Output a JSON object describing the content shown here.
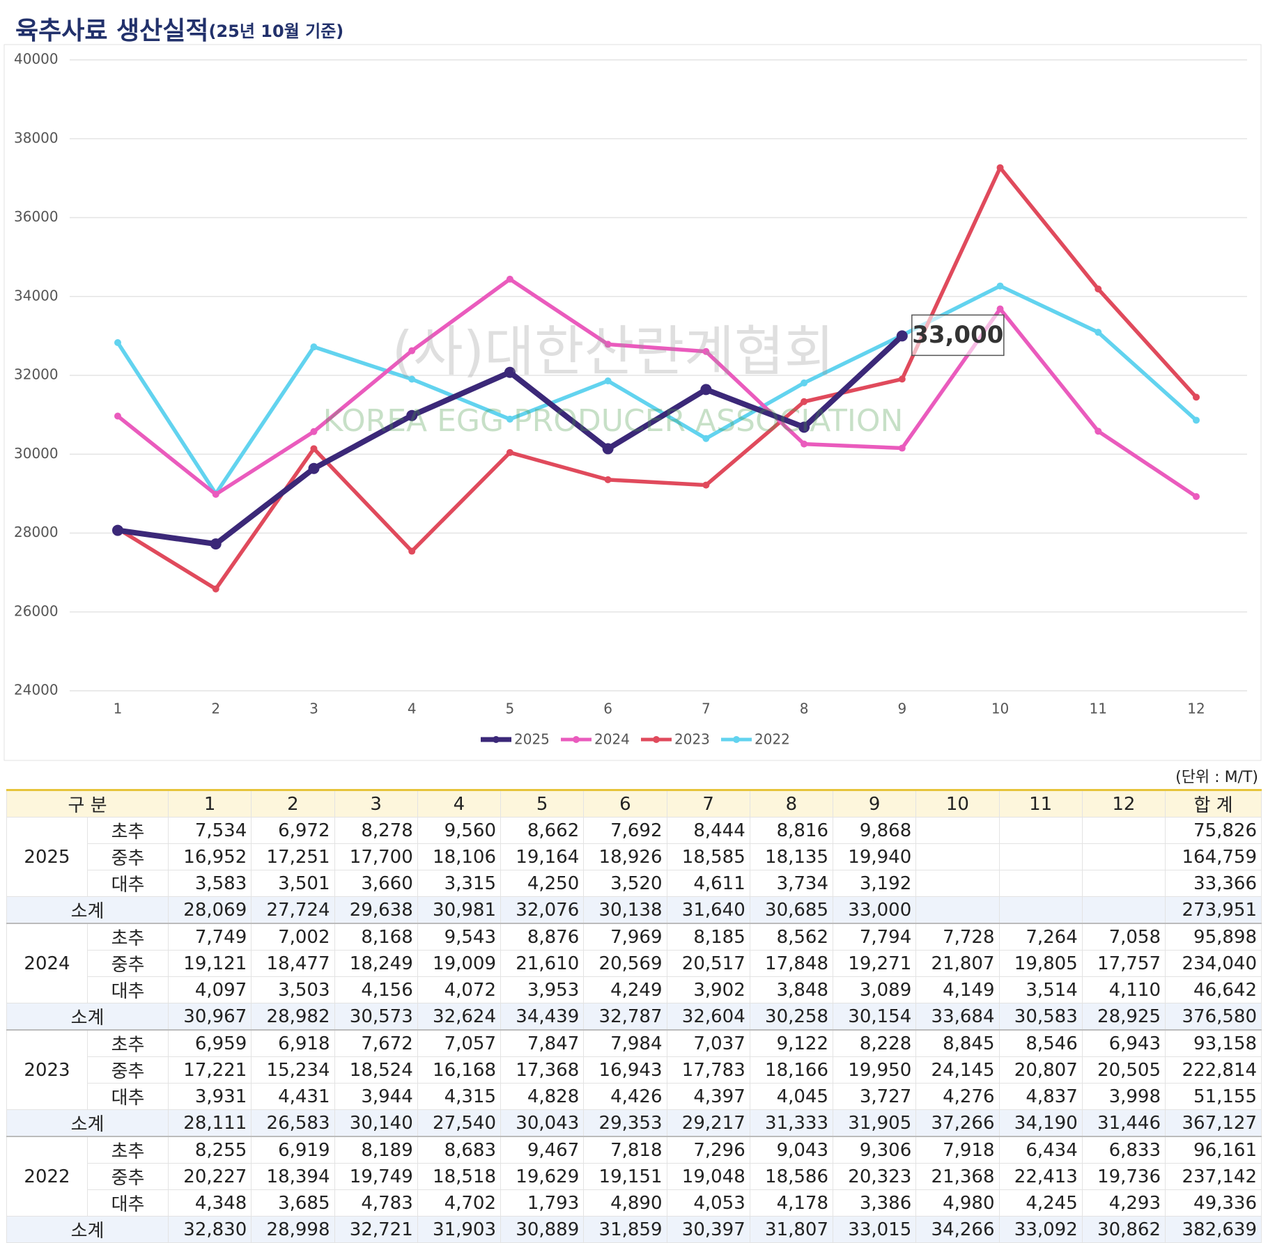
{
  "chart_data": {
    "type": "line",
    "title": "육추사료 생산실적",
    "subtitle": "(25년 10월 기준)",
    "categories": [
      "1",
      "2",
      "3",
      "4",
      "5",
      "6",
      "7",
      "8",
      "9",
      "10",
      "11",
      "12"
    ],
    "series": [
      {
        "name": "2025",
        "color": "#3b2878",
        "values": [
          28069,
          27724,
          29638,
          30981,
          32076,
          30138,
          31640,
          30685,
          33000,
          null,
          null,
          null
        ],
        "value_labels": [
          null,
          null,
          null,
          null,
          null,
          null,
          null,
          null,
          "33,000",
          null,
          null,
          null
        ]
      },
      {
        "name": "2024",
        "color": "#ea5bbd",
        "values": [
          30967,
          28982,
          30573,
          32624,
          34439,
          32787,
          32604,
          30258,
          30154,
          33684,
          30583,
          28925
        ]
      },
      {
        "name": "2023",
        "color": "#e04a5c",
        "values": [
          28111,
          26583,
          30140,
          27540,
          30043,
          29353,
          29217,
          31333,
          31905,
          37266,
          34190,
          31446
        ]
      },
      {
        "name": "2022",
        "color": "#62d3ef",
        "values": [
          32830,
          28998,
          32721,
          31903,
          30889,
          31859,
          30397,
          31807,
          33015,
          34266,
          33092,
          30862
        ]
      }
    ],
    "ylim": [
      24000,
      40000
    ],
    "yticks": [
      24000,
      26000,
      28000,
      30000,
      32000,
      34000,
      36000,
      38000,
      40000
    ],
    "grid": true,
    "legend": "bottom",
    "annotations": [
      "(사)대한산란계협회",
      "KOREA EGG PRODUCER ASSOCIATION"
    ]
  },
  "table": {
    "unit": "(단위 : M/T)",
    "header": [
      "구 분",
      "1",
      "2",
      "3",
      "4",
      "5",
      "6",
      "7",
      "8",
      "9",
      "10",
      "11",
      "12",
      "합 계"
    ],
    "groups": [
      {
        "year": "2025",
        "rows": [
          {
            "label": "초추",
            "cells": [
              "7,534",
              "6,972",
              "8,278",
              "9,560",
              "8,662",
              "7,692",
              "8,444",
              "8,816",
              "9,868",
              null,
              null,
              null,
              "75,826"
            ]
          },
          {
            "label": "중추",
            "cells": [
              "16,952",
              "17,251",
              "17,700",
              "18,106",
              "19,164",
              "18,926",
              "18,585",
              "18,135",
              "19,940",
              null,
              null,
              null,
              "164,759"
            ]
          },
          {
            "label": "대추",
            "cells": [
              "3,583",
              "3,501",
              "3,660",
              "3,315",
              "4,250",
              "3,520",
              "4,611",
              "3,734",
              "3,192",
              null,
              null,
              null,
              "33,366"
            ]
          }
        ],
        "subtotal": {
          "label": "소계",
          "cells": [
            "28,069",
            "27,724",
            "29,638",
            "30,981",
            "32,076",
            "30,138",
            "31,640",
            "30,685",
            "33,000",
            null,
            null,
            null,
            "273,951"
          ]
        }
      },
      {
        "year": "2024",
        "rows": [
          {
            "label": "초추",
            "cells": [
              "7,749",
              "7,002",
              "8,168",
              "9,543",
              "8,876",
              "7,969",
              "8,185",
              "8,562",
              "7,794",
              "7,728",
              "7,264",
              "7,058",
              "95,898"
            ]
          },
          {
            "label": "중추",
            "cells": [
              "19,121",
              "18,477",
              "18,249",
              "19,009",
              "21,610",
              "20,569",
              "20,517",
              "17,848",
              "19,271",
              "21,807",
              "19,805",
              "17,757",
              "234,040"
            ]
          },
          {
            "label": "대추",
            "cells": [
              "4,097",
              "3,503",
              "4,156",
              "4,072",
              "3,953",
              "4,249",
              "3,902",
              "3,848",
              "3,089",
              "4,149",
              "3,514",
              "4,110",
              "46,642"
            ]
          }
        ],
        "subtotal": {
          "label": "소계",
          "cells": [
            "30,967",
            "28,982",
            "30,573",
            "32,624",
            "34,439",
            "32,787",
            "32,604",
            "30,258",
            "30,154",
            "33,684",
            "30,583",
            "28,925",
            "376,580"
          ]
        }
      },
      {
        "year": "2023",
        "rows": [
          {
            "label": "초추",
            "cells": [
              "6,959",
              "6,918",
              "7,672",
              "7,057",
              "7,847",
              "7,984",
              "7,037",
              "9,122",
              "8,228",
              "8,845",
              "8,546",
              "6,943",
              "93,158"
            ]
          },
          {
            "label": "중추",
            "cells": [
              "17,221",
              "15,234",
              "18,524",
              "16,168",
              "17,368",
              "16,943",
              "17,783",
              "18,166",
              "19,950",
              "24,145",
              "20,807",
              "20,505",
              "222,814"
            ]
          },
          {
            "label": "대추",
            "cells": [
              "3,931",
              "4,431",
              "3,944",
              "4,315",
              "4,828",
              "4,426",
              "4,397",
              "4,045",
              "3,727",
              "4,276",
              "4,837",
              "3,998",
              "51,155"
            ]
          }
        ],
        "subtotal": {
          "label": "소계",
          "cells": [
            "28,111",
            "26,583",
            "30,140",
            "27,540",
            "30,043",
            "29,353",
            "29,217",
            "31,333",
            "31,905",
            "37,266",
            "34,190",
            "31,446",
            "367,127"
          ]
        }
      },
      {
        "year": "2022",
        "rows": [
          {
            "label": "초추",
            "cells": [
              "8,255",
              "6,919",
              "8,189",
              "8,683",
              "9,467",
              "7,818",
              "7,296",
              "9,043",
              "9,306",
              "7,918",
              "6,434",
              "6,833",
              "96,161"
            ]
          },
          {
            "label": "중추",
            "cells": [
              "20,227",
              "18,394",
              "19,749",
              "18,518",
              "19,629",
              "19,151",
              "19,048",
              "18,586",
              "20,323",
              "21,368",
              "22,413",
              "19,736",
              "237,142"
            ]
          },
          {
            "label": "대추",
            "cells": [
              "4,348",
              "3,685",
              "4,783",
              "4,702",
              "1,793",
              "4,890",
              "4,053",
              "4,178",
              "3,386",
              "4,980",
              "4,245",
              "4,293",
              "49,336"
            ]
          }
        ],
        "subtotal": {
          "label": "소계",
          "cells": [
            "32,830",
            "28,998",
            "32,721",
            "31,903",
            "30,889",
            "31,859",
            "30,397",
            "31,807",
            "33,015",
            "34,266",
            "33,092",
            "30,862",
            "382,639"
          ]
        }
      }
    ]
  }
}
